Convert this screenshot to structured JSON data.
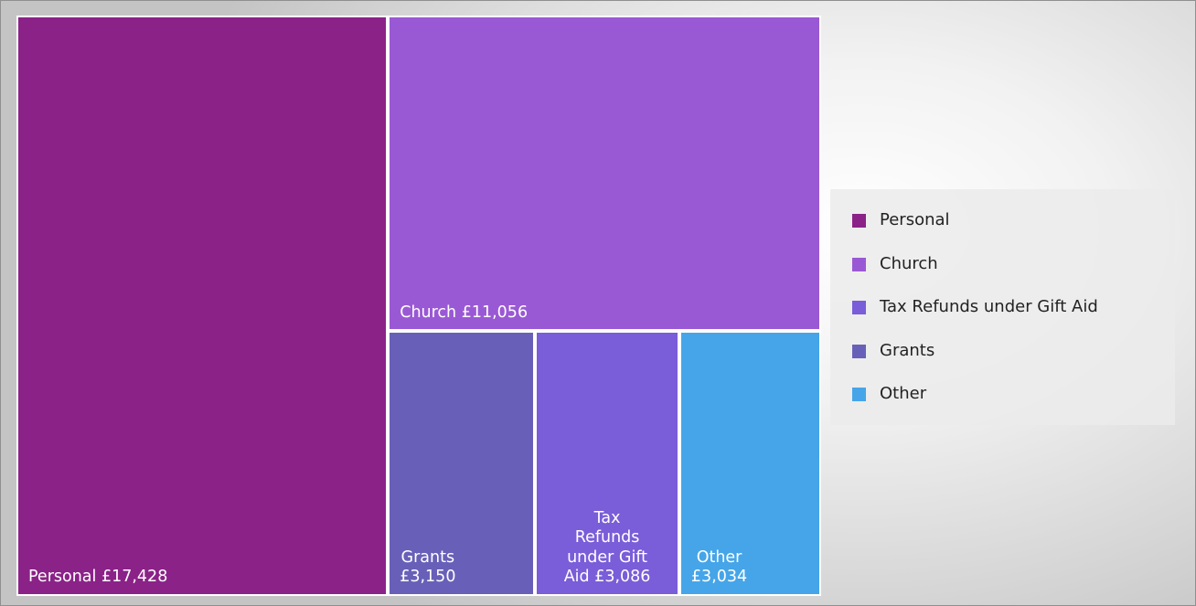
{
  "chart_data": {
    "type": "treemap",
    "currency": "£",
    "items": [
      {
        "name": "Personal",
        "value": 17428,
        "label": "Personal £17,428",
        "color": "#8b2288"
      },
      {
        "name": "Church",
        "value": 11056,
        "label": "Church £11,056",
        "color": "#9a59d4"
      },
      {
        "name": "Grants",
        "value": 3150,
        "label": "Grants\n£3,150",
        "color": "#6860b8"
      },
      {
        "name": "Tax Refunds under Gift Aid",
        "value": 3086,
        "label": "Tax\nRefunds\nunder Gift\nAid £3,086",
        "color": "#7a5dd8"
      },
      {
        "name": "Other",
        "value": 3034,
        "label": "Other\n£3,034",
        "color": "#45a5e8"
      }
    ],
    "legend": {
      "position": "right",
      "entries": [
        "Personal",
        "Church",
        "Tax Refunds under Gift Aid",
        "Grants",
        "Other"
      ]
    }
  }
}
